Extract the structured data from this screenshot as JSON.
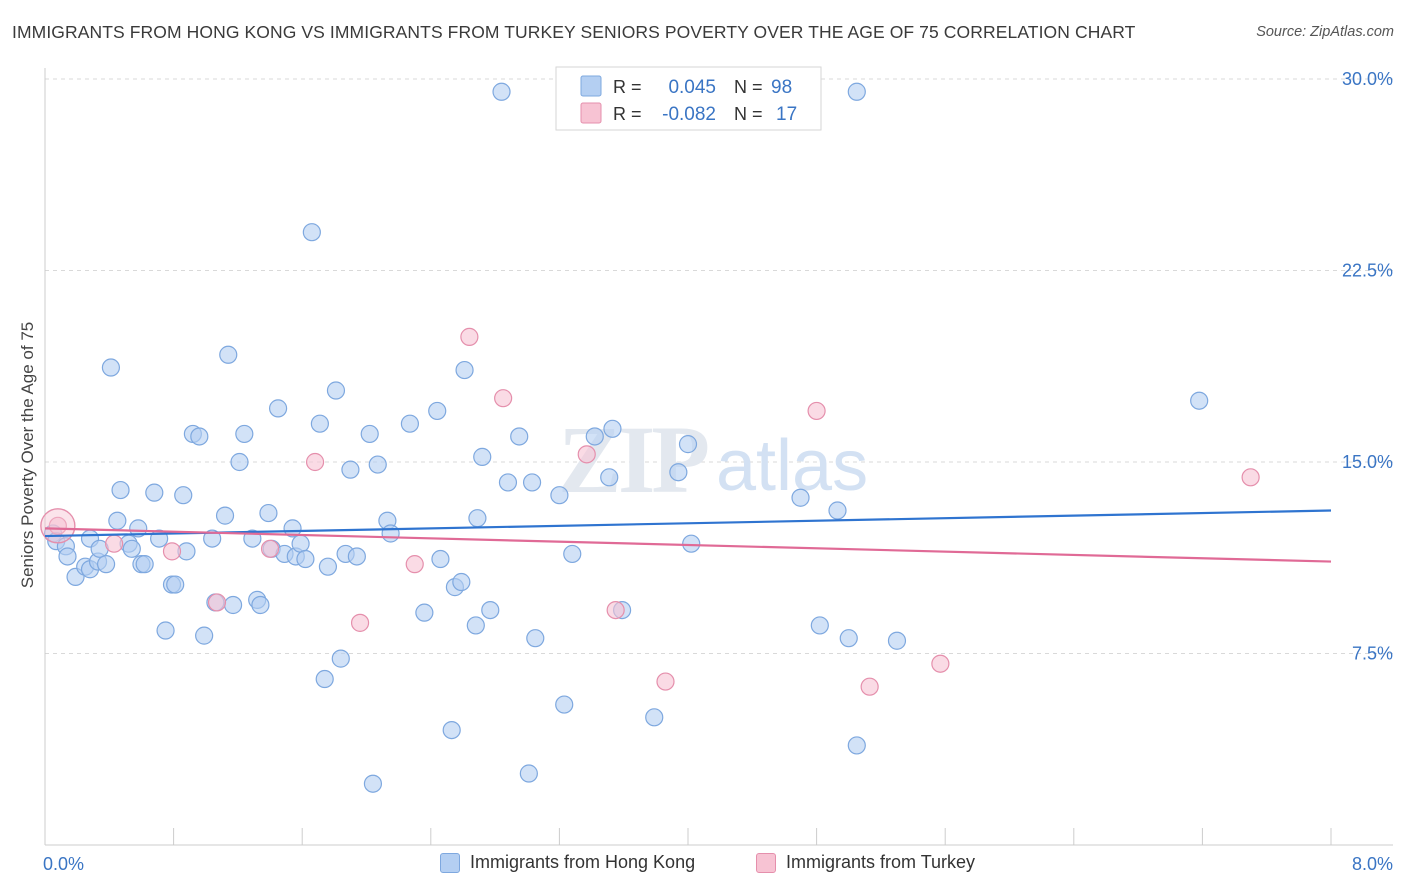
{
  "header": {
    "title": "IMMIGRANTS FROM HONG KONG VS IMMIGRANTS FROM TURKEY SENIORS POVERTY OVER THE AGE OF 75 CORRELATION CHART",
    "source": "Source: ZipAtlas.com"
  },
  "watermark": {
    "zip": "ZIP",
    "atlas": "atlas"
  },
  "colors": {
    "blue_fill": "#b4cff2",
    "blue_stroke": "#7ea8df",
    "blue_line": "#2f74d0",
    "pink_fill": "#f7c3d3",
    "pink_stroke": "#e58fac",
    "pink_line": "#e06a96",
    "axis_label": "#3a75c4",
    "grid": "#d9d9d9"
  },
  "chart_data": {
    "type": "scatter",
    "title": "IMMIGRANTS FROM HONG KONG VS IMMIGRANTS FROM TURKEY SENIORS POVERTY OVER THE AGE OF 75 CORRELATION CHART",
    "xlabel": "",
    "ylabel": "Seniors Poverty Over the Age of 75",
    "xlim": [
      0,
      8.0
    ],
    "ylim": [
      0,
      30.0
    ],
    "x_tick_labels": [
      {
        "value": 0,
        "label": "0.0%"
      },
      {
        "value": 8.0,
        "label": "8.0%"
      }
    ],
    "y_tick_labels": [
      {
        "value": 7.5,
        "label": "7.5%"
      },
      {
        "value": 15.0,
        "label": "15.0%"
      },
      {
        "value": 22.5,
        "label": "22.5%"
      },
      {
        "value": 30.0,
        "label": "30.0%"
      }
    ],
    "grid": "horizontal dashed",
    "legend": {
      "position": "top-center",
      "entries": [
        {
          "r_label": "R =",
          "r": "0.045",
          "n_label": "N =",
          "n": "98"
        },
        {
          "r_label": "R =",
          "r": "-0.082",
          "n_label": "N =",
          "n": "17"
        }
      ]
    },
    "series": [
      {
        "name": "Immigrants from Hong Kong",
        "color": "#b4cff2",
        "trend": {
          "x": [
            0,
            8.0
          ],
          "y": [
            12.1,
            13.1
          ]
        },
        "points": [
          [
            0.05,
            12.2
          ],
          [
            0.07,
            11.9
          ],
          [
            0.13,
            11.7
          ],
          [
            0.14,
            11.3
          ],
          [
            0.19,
            10.5
          ],
          [
            0.25,
            10.9
          ],
          [
            0.28,
            12.0
          ],
          [
            0.28,
            10.8
          ],
          [
            0.33,
            11.1
          ],
          [
            0.34,
            11.6
          ],
          [
            0.38,
            11.0
          ],
          [
            0.41,
            18.7
          ],
          [
            0.45,
            12.7
          ],
          [
            0.47,
            13.9
          ],
          [
            0.52,
            11.8
          ],
          [
            0.54,
            11.6
          ],
          [
            0.58,
            12.4
          ],
          [
            0.6,
            11.0
          ],
          [
            0.62,
            11.0
          ],
          [
            0.68,
            13.8
          ],
          [
            0.71,
            12.0
          ],
          [
            0.75,
            8.4
          ],
          [
            0.79,
            10.2
          ],
          [
            0.81,
            10.2
          ],
          [
            0.86,
            13.7
          ],
          [
            0.88,
            11.5
          ],
          [
            0.92,
            16.1
          ],
          [
            0.96,
            16.0
          ],
          [
            0.99,
            8.2
          ],
          [
            1.04,
            12.0
          ],
          [
            1.06,
            9.5
          ],
          [
            1.12,
            12.9
          ],
          [
            1.14,
            19.2
          ],
          [
            1.17,
            9.4
          ],
          [
            1.21,
            15.0
          ],
          [
            1.24,
            16.1
          ],
          [
            1.29,
            12.0
          ],
          [
            1.32,
            9.6
          ],
          [
            1.34,
            9.4
          ],
          [
            1.39,
            13.0
          ],
          [
            1.41,
            11.6
          ],
          [
            1.45,
            17.1
          ],
          [
            1.49,
            11.4
          ],
          [
            1.54,
            12.4
          ],
          [
            1.56,
            11.3
          ],
          [
            1.59,
            11.8
          ],
          [
            1.62,
            11.2
          ],
          [
            1.66,
            24.0
          ],
          [
            1.71,
            16.5
          ],
          [
            1.74,
            6.5
          ],
          [
            1.76,
            10.9
          ],
          [
            1.81,
            17.8
          ],
          [
            1.84,
            7.3
          ],
          [
            1.87,
            11.4
          ],
          [
            1.9,
            14.7
          ],
          [
            1.94,
            11.3
          ],
          [
            2.02,
            16.1
          ],
          [
            2.04,
            2.4
          ],
          [
            2.07,
            14.9
          ],
          [
            2.13,
            12.7
          ],
          [
            2.15,
            12.2
          ],
          [
            2.27,
            16.5
          ],
          [
            2.36,
            9.1
          ],
          [
            2.44,
            17.0
          ],
          [
            2.46,
            11.2
          ],
          [
            2.53,
            4.5
          ],
          [
            2.55,
            10.1
          ],
          [
            2.59,
            10.3
          ],
          [
            2.61,
            18.6
          ],
          [
            2.68,
            8.6
          ],
          [
            2.69,
            12.8
          ],
          [
            2.72,
            15.2
          ],
          [
            2.77,
            9.2
          ],
          [
            2.84,
            29.5
          ],
          [
            2.88,
            14.2
          ],
          [
            2.95,
            16.0
          ],
          [
            3.01,
            2.8
          ],
          [
            3.03,
            14.2
          ],
          [
            3.05,
            8.1
          ],
          [
            3.2,
            13.7
          ],
          [
            3.23,
            5.5
          ],
          [
            3.28,
            11.4
          ],
          [
            3.42,
            16.0
          ],
          [
            3.51,
            14.4
          ],
          [
            3.53,
            16.3
          ],
          [
            3.59,
            9.2
          ],
          [
            3.79,
            5.0
          ],
          [
            3.94,
            14.6
          ],
          [
            4.0,
            15.7
          ],
          [
            4.02,
            11.8
          ],
          [
            4.7,
            13.6
          ],
          [
            4.82,
            8.6
          ],
          [
            4.93,
            13.1
          ],
          [
            5.0,
            8.1
          ],
          [
            5.05,
            3.9
          ],
          [
            5.05,
            29.5
          ],
          [
            5.3,
            8.0
          ],
          [
            7.18,
            17.4
          ]
        ]
      },
      {
        "name": "Immigrants from Turkey",
        "color": "#f7c3d3",
        "trend": {
          "x": [
            0,
            8.0
          ],
          "y": [
            12.4,
            11.1
          ]
        },
        "points": [
          [
            0.08,
            12.5
          ],
          [
            0.43,
            11.8
          ],
          [
            0.79,
            11.5
          ],
          [
            1.07,
            9.5
          ],
          [
            1.4,
            11.6
          ],
          [
            1.68,
            15.0
          ],
          [
            1.96,
            8.7
          ],
          [
            2.3,
            11.0
          ],
          [
            2.64,
            19.9
          ],
          [
            2.85,
            17.5
          ],
          [
            3.37,
            15.3
          ],
          [
            3.55,
            9.2
          ],
          [
            3.86,
            6.4
          ],
          [
            4.8,
            17.0
          ],
          [
            5.13,
            6.2
          ],
          [
            5.57,
            7.1
          ],
          [
            7.5,
            14.4
          ]
        ]
      }
    ]
  },
  "bottom_legend": [
    {
      "label": "Immigrants from Hong Kong"
    },
    {
      "label": "Immigrants from Turkey"
    }
  ]
}
